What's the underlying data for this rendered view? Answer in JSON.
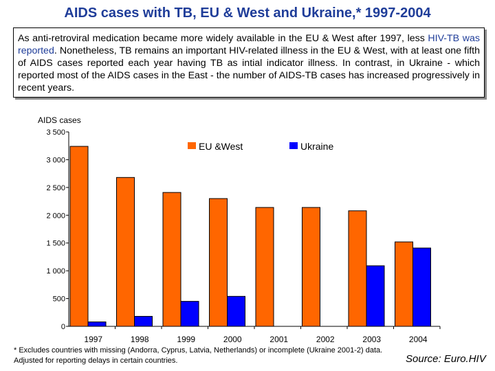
{
  "title": "AIDS cases with TB, EU & West and Ukraine,* 1997-2004",
  "intro": {
    "part1": "As anti-retroviral medication became more widely available in the EU & West after 1997, less",
    "highlight": "HIV-TB was reported",
    "part2": ".  Nonetheless, TB remains an important HIV-related illness in the EU & West, with at least one fifth of AIDS cases reported each year having TB as intial indicator illness.  In contrast, in Ukraine - which reported most of the AIDS cases in the East - the number of AIDS-TB cases has increased progressively in recent years."
  },
  "chart_data": {
    "type": "bar",
    "ylabel": "AIDS cases",
    "ylim": [
      0,
      3500
    ],
    "yticks": [
      0,
      500,
      1000,
      1500,
      2000,
      2500,
      3000,
      3500
    ],
    "ytick_labels": [
      "0",
      "500",
      "1 000",
      "1 500",
      "2 000",
      "2 500",
      "3 000",
      "3 500"
    ],
    "categories": [
      "1997",
      "1998",
      "1999",
      "2000",
      "2001",
      "2002",
      "2003",
      "2004"
    ],
    "series": [
      {
        "name": "EU &West",
        "color": "#ff6600",
        "values": [
          3240,
          2680,
          2410,
          2300,
          2140,
          2140,
          2080,
          1520
        ]
      },
      {
        "name": "Ukraine",
        "color": "#0000ff",
        "values": [
          80,
          180,
          450,
          540,
          null,
          null,
          1090,
          1410
        ]
      }
    ],
    "legend_position": "top-right"
  },
  "footnote": "* Excludes countries with missing (Andorra, Cyprus, Latvia, Netherlands) or incomplete (Ukraine 2001-2) data.  Adjusted for reporting delays in certain countries.",
  "source": "Source: Euro.HIV"
}
